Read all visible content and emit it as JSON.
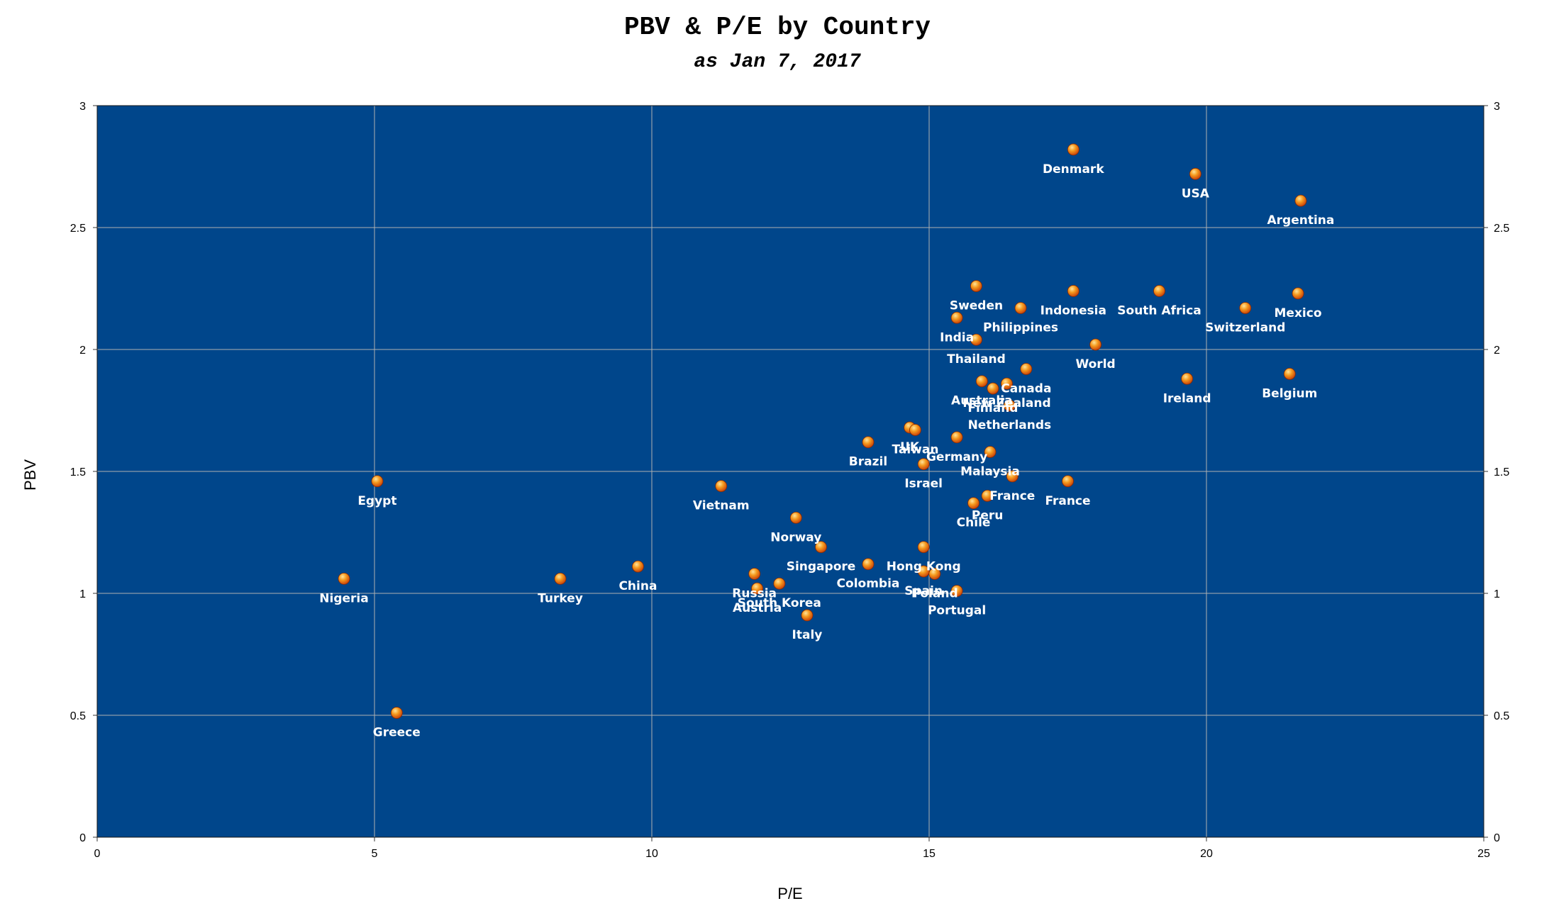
{
  "colors": {
    "plot_background": "#00468b",
    "gridline": "#b0b0b0",
    "marker_fill": "#f07a10",
    "marker_highlight": "#ffd070",
    "label_text": "#ffffff"
  },
  "chart_data": {
    "type": "scatter",
    "title": "PBV & P/E by Country",
    "subtitle": "as Jan 7, 2017",
    "xlabel": "P/E",
    "ylabel": "PBV",
    "xlim": [
      0,
      25
    ],
    "ylim": [
      0,
      3
    ],
    "xticks": [
      "0",
      "5",
      "10",
      "15",
      "20",
      "25"
    ],
    "yticks": [
      "0",
      "0.5",
      "1",
      "1.5",
      "2",
      "2.5",
      "3"
    ],
    "grid": true,
    "secondary_y_axis": true,
    "points": [
      {
        "label": "Denmark",
        "x": 17.6,
        "y": 2.82
      },
      {
        "label": "USA",
        "x": 19.8,
        "y": 2.72
      },
      {
        "label": "Argentina",
        "x": 21.7,
        "y": 2.61
      },
      {
        "label": "Sweden",
        "x": 15.85,
        "y": 2.26
      },
      {
        "label": "Philippines",
        "x": 16.65,
        "y": 2.17
      },
      {
        "label": "Indonesia",
        "x": 17.6,
        "y": 2.24
      },
      {
        "label": "South Africa",
        "x": 19.15,
        "y": 2.24
      },
      {
        "label": "Switzerland",
        "x": 20.7,
        "y": 2.17
      },
      {
        "label": "Mexico",
        "x": 21.65,
        "y": 2.23
      },
      {
        "label": "India",
        "x": 15.5,
        "y": 2.13
      },
      {
        "label": "Thailand",
        "x": 15.85,
        "y": 2.04
      },
      {
        "label": "World",
        "x": 18.0,
        "y": 2.02
      },
      {
        "label": "Canada",
        "x": 16.75,
        "y": 1.92
      },
      {
        "label": "New Zealand",
        "x": 16.4,
        "y": 1.86
      },
      {
        "label": "Australia",
        "x": 15.95,
        "y": 1.87
      },
      {
        "label": "Finland",
        "x": 16.15,
        "y": 1.84
      },
      {
        "label": "Netherlands",
        "x": 16.45,
        "y": 1.77
      },
      {
        "label": "Ireland",
        "x": 19.65,
        "y": 1.88
      },
      {
        "label": "Belgium",
        "x": 21.5,
        "y": 1.9
      },
      {
        "label": "UK",
        "x": 14.65,
        "y": 1.68
      },
      {
        "label": "Taiwan",
        "x": 14.75,
        "y": 1.67
      },
      {
        "label": "Germany",
        "x": 15.5,
        "y": 1.64
      },
      {
        "label": "Brazil",
        "x": 13.9,
        "y": 1.62
      },
      {
        "label": "Malaysia",
        "x": 16.1,
        "y": 1.58
      },
      {
        "label": "Israel",
        "x": 14.9,
        "y": 1.53
      },
      {
        "label": "France",
        "x": 16.5,
        "y": 1.48
      },
      {
        "label": "France",
        "x": 17.5,
        "y": 1.46
      },
      {
        "label": "Peru",
        "x": 16.05,
        "y": 1.4
      },
      {
        "label": "Chile",
        "x": 15.8,
        "y": 1.37
      },
      {
        "label": "Egypt",
        "x": 5.05,
        "y": 1.46
      },
      {
        "label": "Vietnam",
        "x": 11.25,
        "y": 1.44
      },
      {
        "label": "Norway",
        "x": 12.6,
        "y": 1.31
      },
      {
        "label": "Singapore",
        "x": 13.05,
        "y": 1.19
      },
      {
        "label": "Hong Kong",
        "x": 14.9,
        "y": 1.19
      },
      {
        "label": "Russia",
        "x": 11.85,
        "y": 1.08
      },
      {
        "label": "Colombia",
        "x": 13.9,
        "y": 1.12
      },
      {
        "label": "Spain",
        "x": 14.9,
        "y": 1.09
      },
      {
        "label": "Poland",
        "x": 15.1,
        "y": 1.08
      },
      {
        "label": "Portugal",
        "x": 15.5,
        "y": 1.01
      },
      {
        "label": "South Korea",
        "x": 12.3,
        "y": 1.04
      },
      {
        "label": "Austria",
        "x": 11.9,
        "y": 1.02
      },
      {
        "label": "Italy",
        "x": 12.8,
        "y": 0.91
      },
      {
        "label": "Nigeria",
        "x": 4.45,
        "y": 1.06
      },
      {
        "label": "Turkey",
        "x": 8.35,
        "y": 1.06
      },
      {
        "label": "China",
        "x": 9.75,
        "y": 1.11
      },
      {
        "label": "Greece",
        "x": 5.4,
        "y": 0.51
      }
    ]
  }
}
